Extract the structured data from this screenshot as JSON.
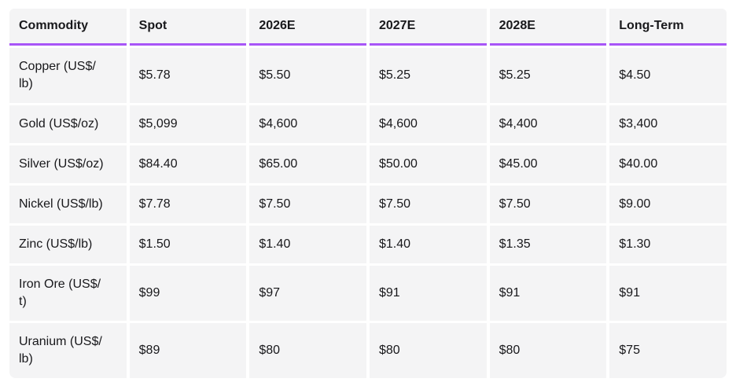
{
  "colors": {
    "accent": "#a855f7",
    "cell-bg": "#f4f4f5",
    "text": "#18181b",
    "page-bg": "#ffffff"
  },
  "table": {
    "columns": [
      "Commodity",
      "Spot",
      "2026E",
      "2027E",
      "2028E",
      "Long-Term"
    ],
    "rows": [
      {
        "commodity": "Copper (US$/\nlb)",
        "values": [
          "$5.78",
          "$5.50",
          "$5.25",
          "$5.25",
          "$4.50"
        ]
      },
      {
        "commodity": "Gold (US$/oz)",
        "values": [
          "$5,099",
          "$4,600",
          "$4,600",
          "$4,400",
          "$3,400"
        ]
      },
      {
        "commodity": "Silver (US$/oz)",
        "values": [
          "$84.40",
          "$65.00",
          "$50.00",
          "$45.00",
          "$40.00"
        ]
      },
      {
        "commodity": "Nickel (US$/lb)",
        "values": [
          "$7.78",
          "$7.50",
          "$7.50",
          "$7.50",
          "$9.00"
        ]
      },
      {
        "commodity": "Zinc (US$/lb)",
        "values": [
          "$1.50",
          "$1.40",
          "$1.40",
          "$1.35",
          "$1.30"
        ]
      },
      {
        "commodity": "Iron Ore (US$/\nt)",
        "values": [
          "$99",
          "$97",
          "$91",
          "$91",
          "$91"
        ]
      },
      {
        "commodity": "Uranium (US$/\nlb)",
        "values": [
          "$89",
          "$80",
          "$80",
          "$80",
          "$75"
        ]
      }
    ]
  }
}
